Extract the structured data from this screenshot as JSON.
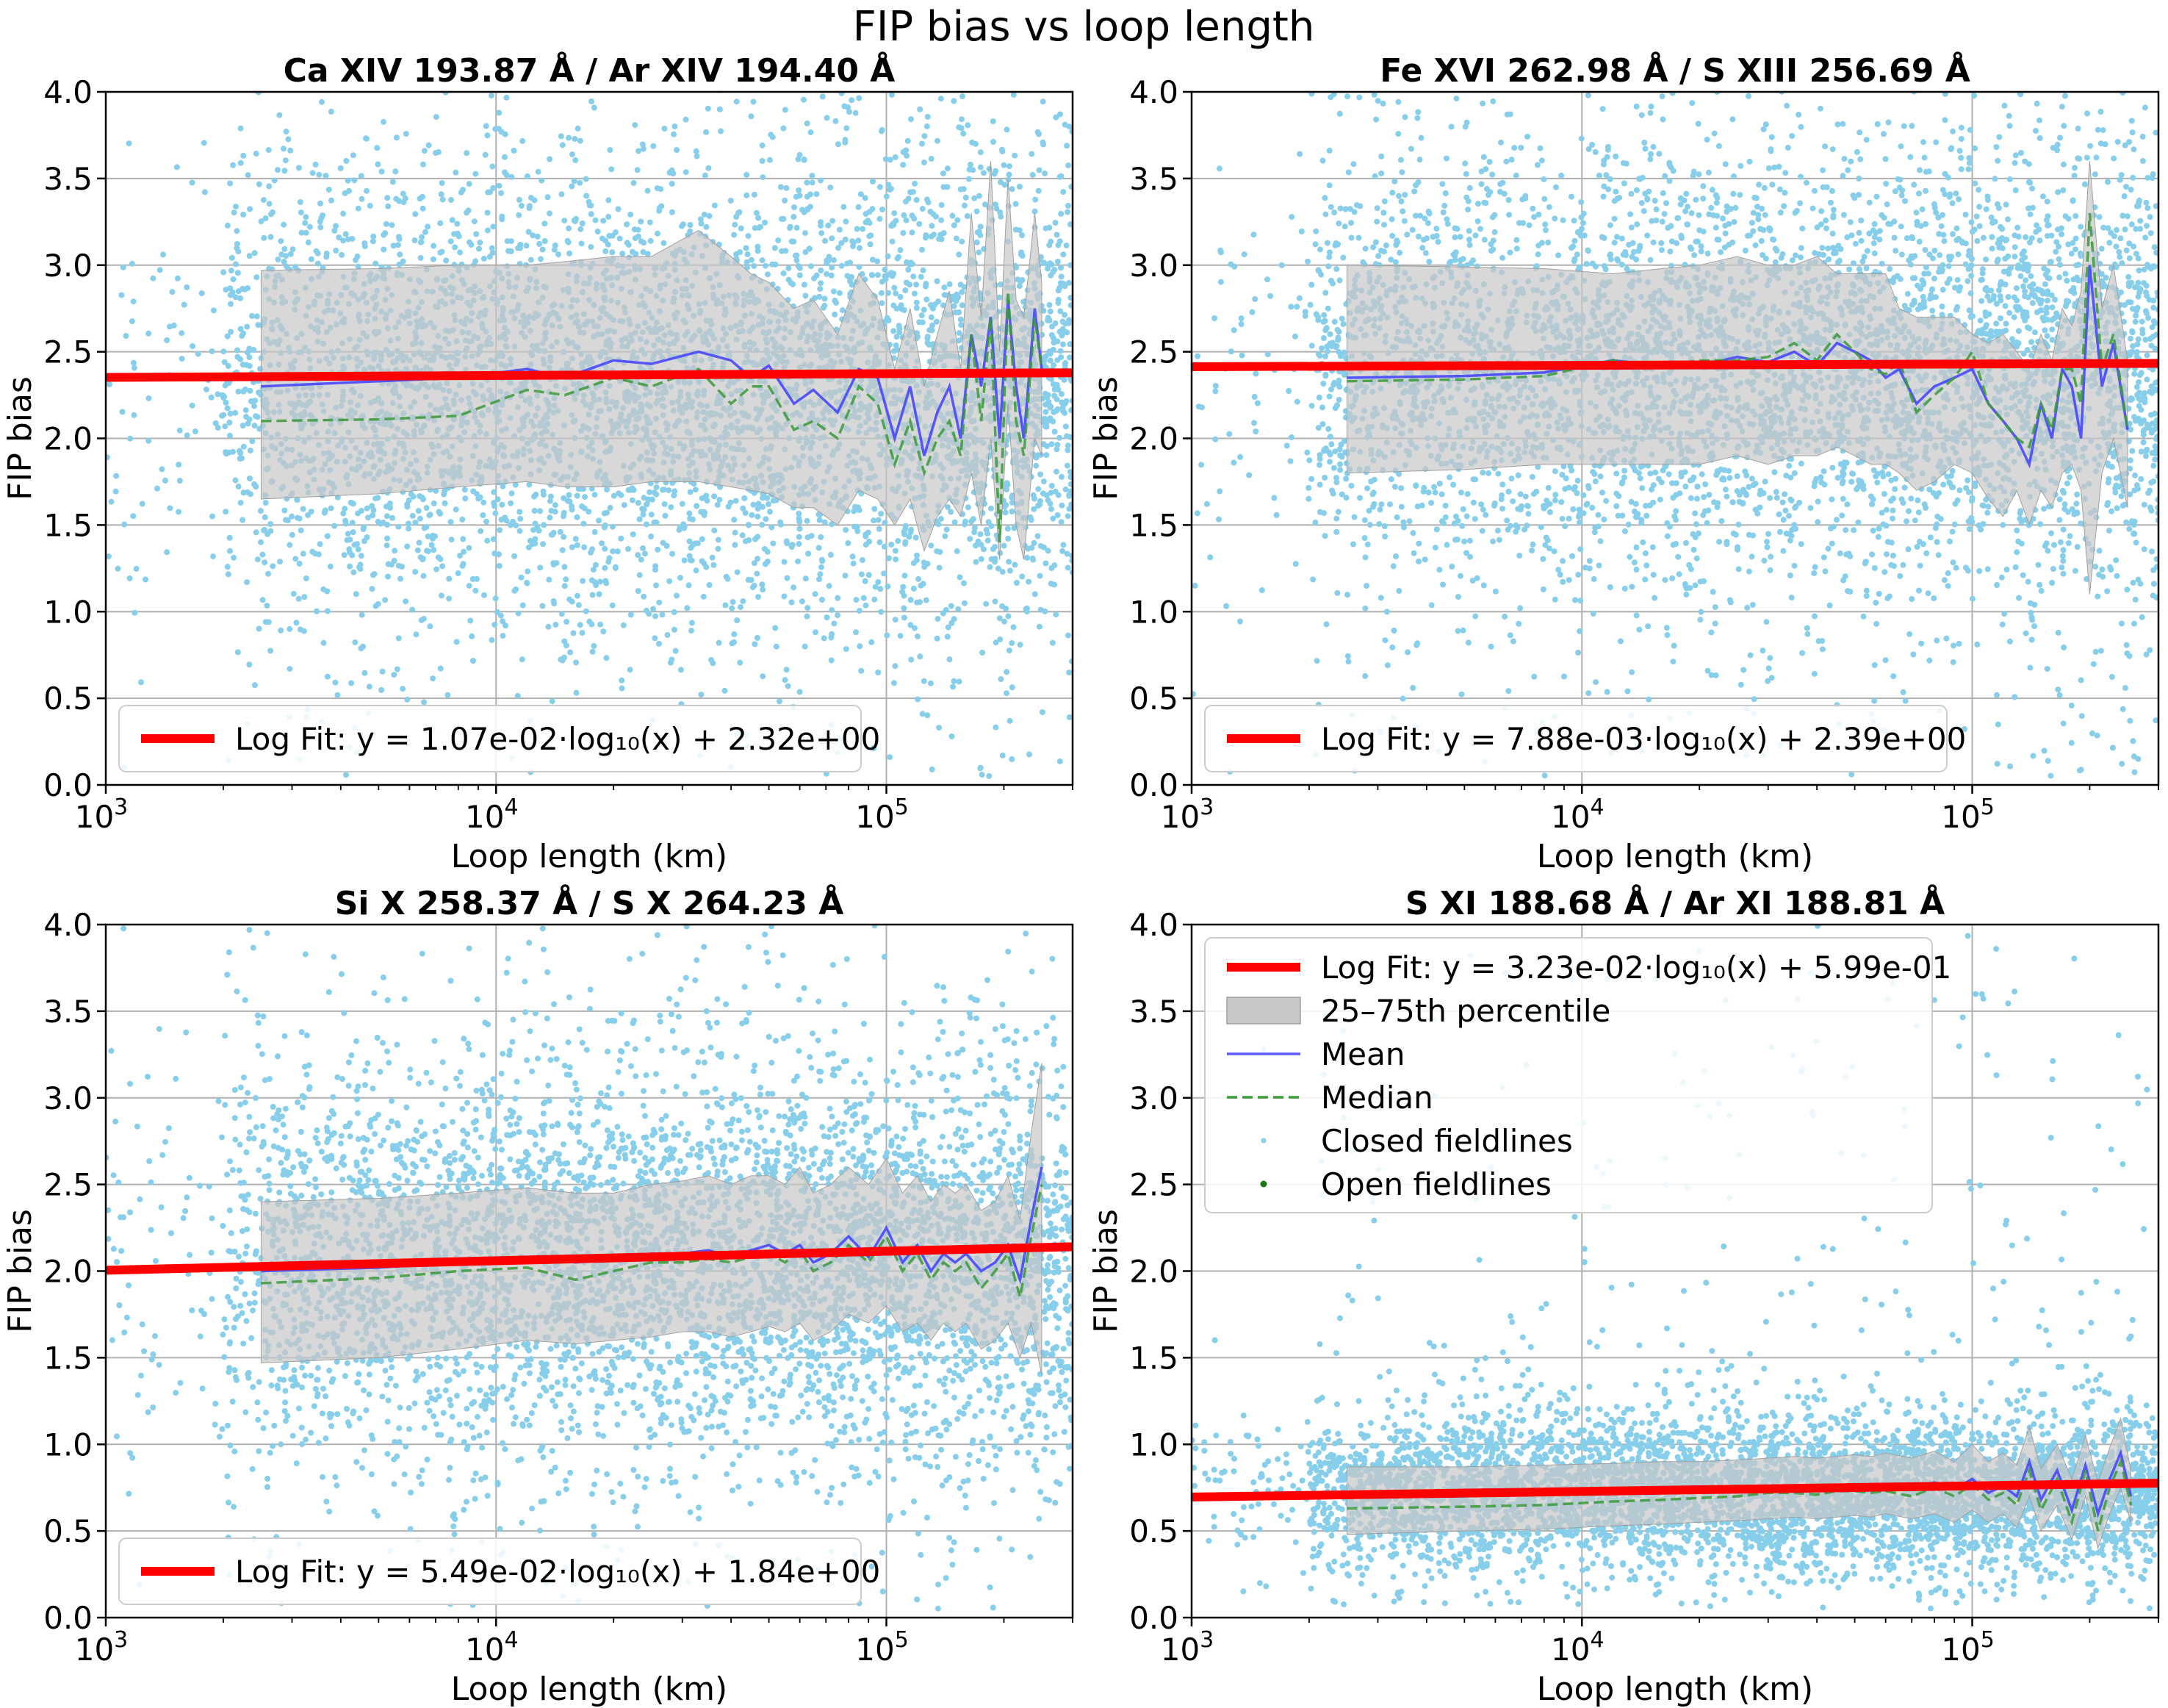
{
  "figure": {
    "suptitle": "FIP bias vs loop length"
  },
  "colors": {
    "scatter_closed": "#87CEEB",
    "scatter_open": "#1a7a1a",
    "fit_line": "#ff0000",
    "percentile_band": "#c8c8c8",
    "mean_line": "#4040ff",
    "median_line": "#3a9a3a",
    "grid": "#b0b0b0"
  },
  "legend_labels": {
    "fit": "Log Fit",
    "band": "25–75th percentile",
    "mean": "Mean",
    "median": "Median",
    "closed": "Closed fieldlines",
    "open": "Open fieldlines"
  },
  "chart_data": [
    {
      "type": "scatter",
      "title": "Ca XIV 193.87 Å / Ar XIV 194.40 Å",
      "xlabel": "Loop length (km)",
      "ylabel": "FIP bias",
      "xscale": "log",
      "xlim": [
        1000,
        300000
      ],
      "ylim": [
        0.0,
        4.0
      ],
      "xticks": [
        {
          "value": 1000,
          "base": "10",
          "exp": "3"
        },
        {
          "value": 10000,
          "base": "10",
          "exp": "4"
        },
        {
          "value": 100000,
          "base": "10",
          "exp": "5"
        }
      ],
      "yticks": [
        {
          "value": 0.0,
          "label": "0.0"
        },
        {
          "value": 0.5,
          "label": "0.5"
        },
        {
          "value": 1.0,
          "label": "1.0"
        },
        {
          "value": 1.5,
          "label": "1.5"
        },
        {
          "value": 2.0,
          "label": "2.0"
        },
        {
          "value": 2.5,
          "label": "2.5"
        },
        {
          "value": 3.0,
          "label": "3.0"
        },
        {
          "value": 3.5,
          "label": "3.5"
        },
        {
          "value": 4.0,
          "label": "4.0"
        }
      ],
      "grid": true,
      "legend_position": "lower-left",
      "legend_full": false,
      "fit": {
        "slope": 0.0107,
        "intercept": 2.32,
        "label": "Log Fit: y = 1.07e-02·log₁₀(x) + 2.32e+00"
      },
      "scatter": {
        "x_range": [
          1000,
          300000
        ],
        "center": 2.3,
        "spread": 0.65,
        "tail": 0.3,
        "dense_start": 2000,
        "seed": 11
      },
      "stats": {
        "x": [
          2500,
          5000,
          8000,
          12000,
          15000,
          20000,
          25000,
          33000,
          40000,
          45000,
          50000,
          58000,
          65000,
          75000,
          85000,
          95000,
          105000,
          115000,
          125000,
          135000,
          145000,
          155000,
          165000,
          175000,
          185000,
          195000,
          205000,
          215000,
          225000,
          240000,
          250000
        ],
        "mean": [
          2.3,
          2.33,
          2.35,
          2.4,
          2.35,
          2.45,
          2.43,
          2.5,
          2.45,
          2.35,
          2.42,
          2.2,
          2.28,
          2.15,
          2.4,
          2.35,
          2.0,
          2.3,
          1.9,
          2.15,
          2.3,
          2.0,
          2.6,
          2.3,
          2.7,
          2.0,
          2.8,
          2.3,
          2.0,
          2.75,
          2.4
        ],
        "median": [
          2.1,
          2.11,
          2.13,
          2.28,
          2.25,
          2.35,
          2.3,
          2.4,
          2.2,
          2.3,
          2.3,
          2.05,
          2.1,
          2.0,
          2.3,
          2.2,
          1.85,
          2.1,
          1.8,
          2.0,
          2.1,
          1.9,
          2.6,
          2.1,
          2.7,
          1.4,
          2.85,
          2.1,
          1.9,
          2.7,
          2.4
        ],
        "q25": [
          1.65,
          1.68,
          1.72,
          1.75,
          1.72,
          1.72,
          1.75,
          1.75,
          1.72,
          1.7,
          1.68,
          1.6,
          1.6,
          1.5,
          1.7,
          1.65,
          1.5,
          1.65,
          1.35,
          1.55,
          1.65,
          1.55,
          1.8,
          1.5,
          2.0,
          1.3,
          2.2,
          1.5,
          1.3,
          2.0,
          1.9
        ],
        "q75": [
          2.97,
          2.98,
          3.0,
          3.0,
          3.02,
          3.05,
          3.05,
          3.2,
          3.05,
          2.95,
          2.9,
          2.75,
          2.8,
          2.6,
          2.95,
          2.8,
          2.4,
          2.75,
          2.3,
          2.6,
          2.85,
          2.4,
          3.3,
          2.7,
          3.6,
          2.5,
          3.5,
          2.8,
          2.7,
          3.3,
          2.9
        ]
      }
    },
    {
      "type": "scatter",
      "title": "Fe XVI 262.98 Å / S XIII 256.69 Å",
      "xlabel": "Loop length (km)",
      "ylabel": "FIP bias",
      "xscale": "log",
      "xlim": [
        1000,
        300000
      ],
      "ylim": [
        0.0,
        4.0
      ],
      "xticks": [
        {
          "value": 1000,
          "base": "10",
          "exp": "3"
        },
        {
          "value": 10000,
          "base": "10",
          "exp": "4"
        },
        {
          "value": 100000,
          "base": "10",
          "exp": "5"
        }
      ],
      "yticks": [
        {
          "value": 0.0,
          "label": "0.0"
        },
        {
          "value": 0.5,
          "label": "0.5"
        },
        {
          "value": 1.0,
          "label": "1.0"
        },
        {
          "value": 1.5,
          "label": "1.5"
        },
        {
          "value": 2.0,
          "label": "2.0"
        },
        {
          "value": 2.5,
          "label": "2.5"
        },
        {
          "value": 3.0,
          "label": "3.0"
        },
        {
          "value": 3.5,
          "label": "3.5"
        },
        {
          "value": 4.0,
          "label": "4.0"
        }
      ],
      "grid": true,
      "legend_position": "lower-left",
      "legend_full": false,
      "fit": {
        "slope": 0.00788,
        "intercept": 2.39,
        "label": "Log Fit: y = 7.88e-03·log₁₀(x) + 2.39e+00"
      },
      "scatter": {
        "x_range": [
          1000,
          300000
        ],
        "center": 2.4,
        "spread": 0.6,
        "tail": 0.3,
        "dense_start": 2000,
        "seed": 23
      },
      "stats": {
        "x": [
          2500,
          5000,
          8000,
          12000,
          16000,
          20000,
          25000,
          30000,
          35000,
          40000,
          45000,
          50000,
          55000,
          60000,
          65000,
          72000,
          80000,
          90000,
          100000,
          110000,
          120000,
          130000,
          140000,
          150000,
          160000,
          170000,
          180000,
          190000,
          200000,
          215000,
          230000,
          250000
        ],
        "mean": [
          2.35,
          2.36,
          2.38,
          2.45,
          2.42,
          2.42,
          2.47,
          2.44,
          2.5,
          2.42,
          2.55,
          2.5,
          2.45,
          2.35,
          2.4,
          2.2,
          2.3,
          2.35,
          2.4,
          2.2,
          2.1,
          2.0,
          1.85,
          2.2,
          2.0,
          2.4,
          2.3,
          2.0,
          3.0,
          2.3,
          2.55,
          2.05
        ],
        "median": [
          2.33,
          2.34,
          2.36,
          2.45,
          2.42,
          2.45,
          2.45,
          2.47,
          2.55,
          2.45,
          2.6,
          2.5,
          2.4,
          2.37,
          2.45,
          2.15,
          2.25,
          2.35,
          2.5,
          2.2,
          2.1,
          2.0,
          1.95,
          2.2,
          2.05,
          2.4,
          2.4,
          2.2,
          3.3,
          2.4,
          2.6,
          2.05
        ],
        "q25": [
          1.8,
          1.82,
          1.85,
          1.85,
          1.85,
          1.85,
          1.9,
          1.85,
          1.9,
          1.9,
          1.95,
          1.9,
          1.85,
          1.85,
          1.8,
          1.7,
          1.75,
          1.85,
          1.8,
          1.65,
          1.55,
          1.7,
          1.5,
          1.7,
          1.6,
          1.8,
          1.85,
          1.7,
          1.1,
          1.8,
          2.0,
          1.6
        ],
        "q75": [
          3.0,
          2.99,
          2.98,
          2.95,
          2.98,
          3.0,
          3.05,
          3.0,
          3.0,
          3.05,
          2.95,
          2.95,
          2.95,
          2.95,
          2.75,
          2.7,
          2.7,
          2.7,
          2.6,
          2.55,
          2.6,
          2.5,
          2.4,
          2.6,
          2.45,
          2.75,
          2.65,
          2.85,
          3.6,
          2.75,
          3.0,
          2.45
        ]
      }
    },
    {
      "type": "scatter",
      "title": "Si X 258.37 Å / S X 264.23 Å",
      "xlabel": "Loop length (km)",
      "ylabel": "FIP bias",
      "xscale": "log",
      "xlim": [
        1000,
        300000
      ],
      "ylim": [
        0.0,
        4.0
      ],
      "xticks": [
        {
          "value": 1000,
          "base": "10",
          "exp": "3"
        },
        {
          "value": 10000,
          "base": "10",
          "exp": "4"
        },
        {
          "value": 100000,
          "base": "10",
          "exp": "5"
        }
      ],
      "yticks": [
        {
          "value": 0.0,
          "label": "0.0"
        },
        {
          "value": 0.5,
          "label": "0.5"
        },
        {
          "value": 1.0,
          "label": "1.0"
        },
        {
          "value": 1.5,
          "label": "1.5"
        },
        {
          "value": 2.0,
          "label": "2.0"
        },
        {
          "value": 2.5,
          "label": "2.5"
        },
        {
          "value": 3.0,
          "label": "3.0"
        },
        {
          "value": 3.5,
          "label": "3.5"
        },
        {
          "value": 4.0,
          "label": "4.0"
        }
      ],
      "grid": true,
      "legend_position": "lower-left",
      "legend_full": false,
      "fit": {
        "slope": 0.0549,
        "intercept": 1.84,
        "label": "Log Fit: y = 5.49e-02·log₁₀(x) + 1.84e+00"
      },
      "scatter": {
        "x_range": [
          1000,
          300000
        ],
        "center": 2.05,
        "spread": 0.55,
        "tail": 0.25,
        "dense_start": 2000,
        "seed": 37
      },
      "stats": {
        "x": [
          2500,
          5000,
          8000,
          12000,
          16000,
          20000,
          25000,
          30000,
          35000,
          40000,
          45000,
          50000,
          55000,
          60000,
          65000,
          72000,
          80000,
          90000,
          100000,
          110000,
          120000,
          130000,
          140000,
          150000,
          160000,
          175000,
          190000,
          205000,
          220000,
          235000,
          250000
        ],
        "mean": [
          2.0,
          2.02,
          2.05,
          2.08,
          2.05,
          2.07,
          2.1,
          2.1,
          2.12,
          2.08,
          2.12,
          2.15,
          2.1,
          2.15,
          2.05,
          2.1,
          2.2,
          2.08,
          2.25,
          2.05,
          2.15,
          2.0,
          2.1,
          2.05,
          2.1,
          2.0,
          2.05,
          2.15,
          1.95,
          2.3,
          2.6
        ],
        "median": [
          1.93,
          1.96,
          2.0,
          2.02,
          1.95,
          2.0,
          2.05,
          2.05,
          2.07,
          2.05,
          2.08,
          2.1,
          2.05,
          2.12,
          2.0,
          2.05,
          2.15,
          2.05,
          2.2,
          2.0,
          2.1,
          1.95,
          2.05,
          2.0,
          2.05,
          1.9,
          2.0,
          2.1,
          1.85,
          2.2,
          2.5
        ],
        "q25": [
          1.47,
          1.5,
          1.55,
          1.6,
          1.58,
          1.6,
          1.62,
          1.65,
          1.65,
          1.62,
          1.65,
          1.68,
          1.65,
          1.7,
          1.6,
          1.65,
          1.75,
          1.7,
          1.8,
          1.65,
          1.7,
          1.6,
          1.7,
          1.65,
          1.7,
          1.55,
          1.6,
          1.7,
          1.5,
          1.7,
          1.4
        ],
        "q75": [
          2.4,
          2.42,
          2.45,
          2.48,
          2.45,
          2.45,
          2.5,
          2.52,
          2.55,
          2.5,
          2.55,
          2.55,
          2.5,
          2.6,
          2.45,
          2.5,
          2.6,
          2.5,
          2.65,
          2.45,
          2.55,
          2.4,
          2.5,
          2.45,
          2.5,
          2.35,
          2.4,
          2.55,
          2.3,
          2.8,
          3.2
        ]
      }
    },
    {
      "type": "scatter",
      "title": "S XI 188.68 Å / Ar XI 188.81 Å",
      "xlabel": "Loop length (km)",
      "ylabel": "FIP bias",
      "xscale": "log",
      "xlim": [
        1000,
        300000
      ],
      "ylim": [
        0.0,
        4.0
      ],
      "xticks": [
        {
          "value": 1000,
          "base": "10",
          "exp": "3"
        },
        {
          "value": 10000,
          "base": "10",
          "exp": "4"
        },
        {
          "value": 100000,
          "base": "10",
          "exp": "5"
        }
      ],
      "yticks": [
        {
          "value": 0.0,
          "label": "0.0"
        },
        {
          "value": 0.5,
          "label": "0.5"
        },
        {
          "value": 1.0,
          "label": "1.0"
        },
        {
          "value": 1.5,
          "label": "1.5"
        },
        {
          "value": 2.0,
          "label": "2.0"
        },
        {
          "value": 2.5,
          "label": "2.5"
        },
        {
          "value": 3.0,
          "label": "3.0"
        },
        {
          "value": 3.5,
          "label": "3.5"
        },
        {
          "value": 4.0,
          "label": "4.0"
        }
      ],
      "grid": true,
      "legend_position": "upper-left",
      "legend_full": true,
      "fit": {
        "slope": 0.0323,
        "intercept": 0.599,
        "label": "Log Fit: y = 3.23e-02·log₁₀(x) + 5.99e-01"
      },
      "scatter": {
        "x_range": [
          1000,
          300000
        ],
        "center": 0.72,
        "spread": 0.22,
        "tail": 0.08,
        "dense_start": 2000,
        "seed": 53
      },
      "stats": {
        "x": [
          2500,
          5000,
          8000,
          12000,
          16000,
          20000,
          25000,
          30000,
          35000,
          40000,
          45000,
          50000,
          55000,
          60000,
          70000,
          80000,
          90000,
          100000,
          110000,
          120000,
          130000,
          140000,
          150000,
          165000,
          180000,
          195000,
          210000,
          225000,
          240000,
          255000
        ],
        "mean": [
          0.7,
          0.7,
          0.71,
          0.72,
          0.72,
          0.73,
          0.74,
          0.75,
          0.76,
          0.75,
          0.76,
          0.77,
          0.76,
          0.77,
          0.75,
          0.78,
          0.74,
          0.8,
          0.72,
          0.76,
          0.7,
          0.9,
          0.68,
          0.85,
          0.62,
          0.88,
          0.6,
          0.8,
          0.95,
          0.7
        ],
        "median": [
          0.63,
          0.64,
          0.65,
          0.67,
          0.68,
          0.69,
          0.7,
          0.72,
          0.72,
          0.71,
          0.73,
          0.73,
          0.72,
          0.73,
          0.7,
          0.75,
          0.7,
          0.77,
          0.68,
          0.72,
          0.65,
          0.85,
          0.62,
          0.8,
          0.55,
          0.85,
          0.5,
          0.75,
          0.9,
          0.65
        ],
        "q25": [
          0.48,
          0.5,
          0.51,
          0.53,
          0.54,
          0.55,
          0.56,
          0.57,
          0.58,
          0.57,
          0.58,
          0.59,
          0.58,
          0.6,
          0.57,
          0.6,
          0.55,
          0.62,
          0.55,
          0.6,
          0.52,
          0.7,
          0.5,
          0.65,
          0.45,
          0.7,
          0.4,
          0.6,
          0.75,
          0.55
        ],
        "q75": [
          0.87,
          0.87,
          0.88,
          0.89,
          0.9,
          0.9,
          0.91,
          0.92,
          0.93,
          0.92,
          0.93,
          0.94,
          0.93,
          0.95,
          0.92,
          0.96,
          0.9,
          1.0,
          0.9,
          0.95,
          0.88,
          1.1,
          0.86,
          1.0,
          0.8,
          1.05,
          0.78,
          0.98,
          1.15,
          0.85
        ]
      }
    }
  ]
}
